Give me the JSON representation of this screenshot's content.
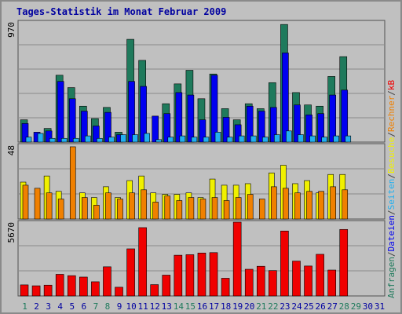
{
  "chart_data": {
    "type": "bar",
    "title": "Tages-Statistik im Monat Februar 2009",
    "days": [
      "1",
      "2",
      "3",
      "4",
      "5",
      "6",
      "7",
      "8",
      "9",
      "10",
      "11",
      "12",
      "13",
      "14",
      "15",
      "16",
      "17",
      "18",
      "19",
      "20",
      "21",
      "22",
      "23",
      "24",
      "25",
      "26",
      "27",
      "28",
      "29",
      "30",
      "31"
    ],
    "weekend_days": [
      1,
      7,
      8,
      14,
      15,
      21,
      22,
      28,
      29
    ],
    "panels": [
      {
        "id": "top",
        "max_label": "970",
        "ylim": [
          0,
          970
        ],
        "series": [
          {
            "name": "Anfragen",
            "color": "#1f7a5c",
            "values": [
              180,
              0,
              110,
              540,
              440,
              290,
              190,
              280,
              80,
              830,
              660,
              0,
              310,
              470,
              580,
              350,
              550,
              270,
              180,
              310,
              270,
              480,
              950,
              400,
              300,
              290,
              530,
              690,
              null,
              null,
              null
            ]
          },
          {
            "name": "Dateien",
            "color": "#0000f0",
            "values": [
              150,
              80,
              90,
              490,
              350,
              250,
              130,
              240,
              60,
              490,
              450,
              210,
              230,
              400,
              380,
              180,
              540,
              200,
              140,
              290,
              250,
              280,
              720,
              300,
              220,
              230,
              380,
              420,
              null,
              null,
              null
            ]
          },
          {
            "name": "Seiten",
            "color": "#22b0f0",
            "values": [
              40,
              70,
              30,
              30,
              30,
              50,
              30,
              40,
              60,
              60,
              70,
              20,
              40,
              50,
              40,
              40,
              80,
              40,
              50,
              50,
              40,
              60,
              90,
              60,
              50,
              40,
              50,
              50,
              null,
              null,
              null
            ]
          }
        ]
      },
      {
        "id": "middle",
        "max_label": "48",
        "ylim": [
          0,
          48
        ],
        "series": [
          {
            "name": "Besuche",
            "color": "#f0f000",
            "values": [
              24,
              0,
              28,
              18,
              0,
              17,
              14,
              21,
              14,
              25,
              28,
              17,
              16,
              16,
              17,
              14,
              26,
              22,
              22,
              23,
              0,
              30,
              35,
              23,
              25,
              17,
              29,
              29,
              null,
              null,
              null
            ]
          },
          {
            "name": "Rechner",
            "color": "#f08000",
            "values": [
              22,
              20,
              17,
              13,
              47,
              14,
              9,
              17,
              13,
              17,
              19,
              11,
              15,
              12,
              14,
              13,
              14,
              12,
              14,
              16,
              13,
              21,
              20,
              17,
              18,
              18,
              21,
              19,
              null,
              null,
              null
            ]
          }
        ]
      },
      {
        "id": "bottom",
        "max_label": "5670",
        "ylim": [
          0,
          5670
        ],
        "series": [
          {
            "name": "kB",
            "color": "#f00000",
            "values": [
              850,
              780,
              830,
              1660,
              1560,
              1450,
              1090,
              2240,
              670,
              3620,
              5250,
              870,
              1600,
              3130,
              3170,
              3300,
              3330,
              1360,
              5670,
              2050,
              2280,
              1950,
              4990,
              2680,
              2300,
              3200,
              1990,
              5110,
              null,
              null,
              null
            ]
          }
        ]
      }
    ],
    "right_legend": [
      {
        "text": "Anfragen",
        "color": "#1f7a5c"
      },
      {
        "text": "/",
        "color": "#404040"
      },
      {
        "text": "Dateien",
        "color": "#0000f0"
      },
      {
        "text": "/",
        "color": "#404040"
      },
      {
        "text": "Seiten",
        "color": "#22b0f0"
      },
      {
        "text": "/",
        "color": "#404040"
      },
      {
        "text": "Besuche",
        "color": "#f0f000"
      },
      {
        "text": "/",
        "color": "#404040"
      },
      {
        "text": "Rechner",
        "color": "#f08000"
      },
      {
        "text": "/",
        "color": "#404040"
      },
      {
        "text": "kB",
        "color": "#f00000"
      }
    ],
    "colors": {
      "background": "#c0c0c0",
      "weekday_label": "#0000a0",
      "weekend_label": "#1f7a5c",
      "gridline": "#8a8a8a",
      "panel_border": "#505050"
    }
  }
}
